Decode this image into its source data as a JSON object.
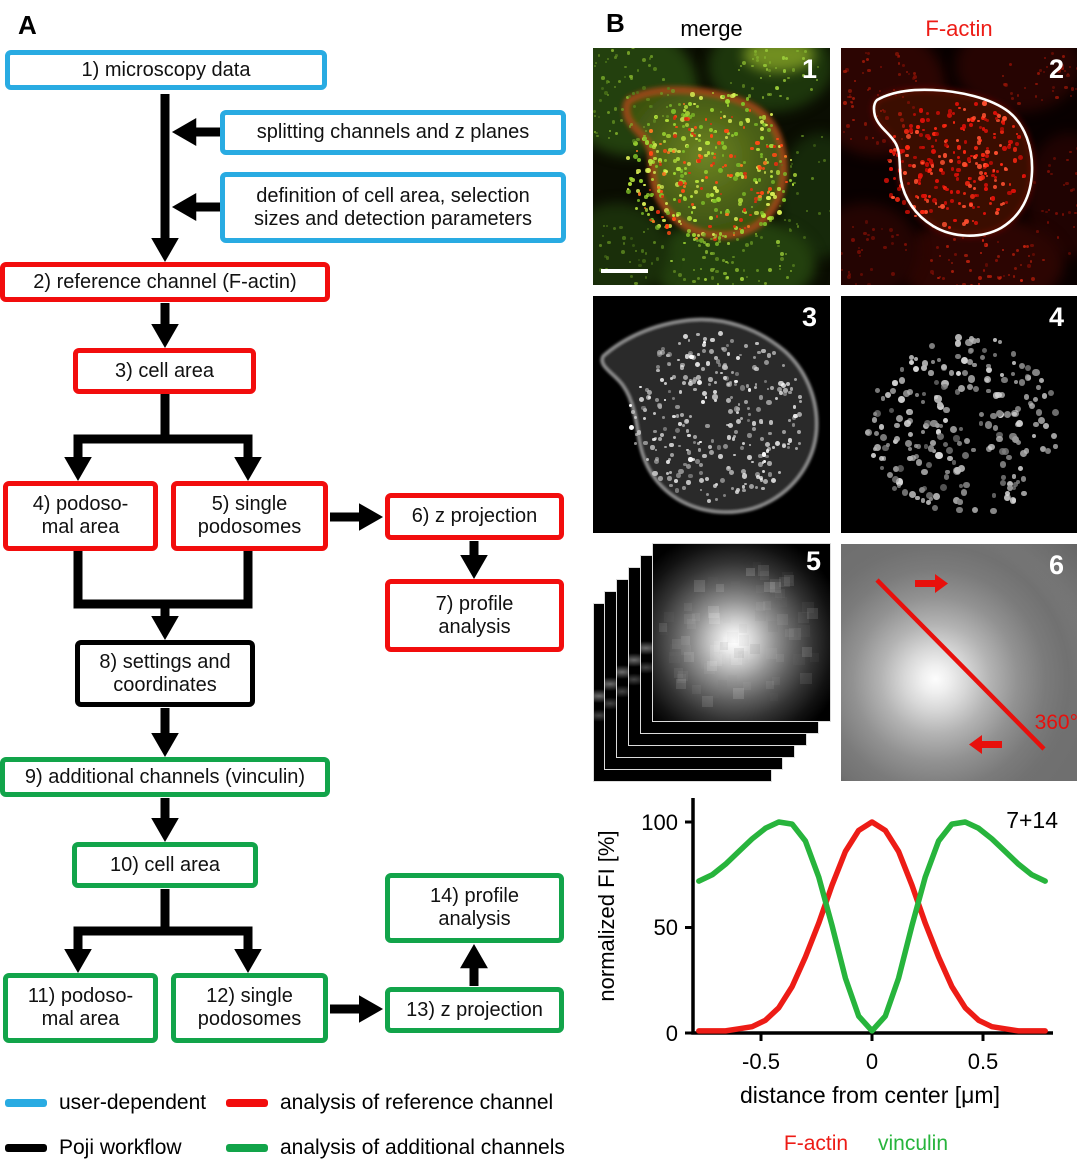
{
  "figure": {
    "panel_a_label": "A",
    "panel_b_label": "B"
  },
  "colors": {
    "user_dependent": "#29abe2",
    "workflow": "#000000",
    "reference": "#f20d0d",
    "additional": "#12a44a",
    "factin_label": "#ed1c16",
    "vinculin_label": "#27b43c",
    "annotation_red": "#e8100c"
  },
  "panel_a": {
    "boxes": [
      {
        "text": "1) microscopy data",
        "category": "user_dependent"
      },
      {
        "text": "splitting channels and z planes",
        "category": "user_dependent"
      },
      {
        "text": "definition of cell area, selection sizes and detection parameters",
        "category": "user_dependent"
      },
      {
        "text": "2) reference channel (F-actin)",
        "category": "reference"
      },
      {
        "text": "3) cell area",
        "category": "reference"
      },
      {
        "text": "4) podoso-mal area",
        "category": "reference"
      },
      {
        "text": "5) single podosomes",
        "category": "reference"
      },
      {
        "text": "6) z projection",
        "category": "reference"
      },
      {
        "text": "7) profile analysis",
        "category": "reference"
      },
      {
        "text": "8) settings and coordinates",
        "category": "workflow"
      },
      {
        "text": "9) additional channels (vinculin)",
        "category": "additional"
      },
      {
        "text": "10) cell area",
        "category": "additional"
      },
      {
        "text": "11) podoso-mal area",
        "category": "additional"
      },
      {
        "text": "12) single podosomes",
        "category": "additional"
      },
      {
        "text": "13) z projection",
        "category": "additional"
      },
      {
        "text": "14) profile analysis",
        "category": "additional"
      }
    ],
    "legend": [
      {
        "label": "user-dependent",
        "category": "user_dependent"
      },
      {
        "label": "Poji workflow",
        "category": "workflow"
      },
      {
        "label": "analysis of reference channel",
        "category": "reference"
      },
      {
        "label": "analysis of additional channels",
        "category": "additional"
      }
    ]
  },
  "panel_b": {
    "column_titles": [
      {
        "text": "merge"
      },
      {
        "text": "F-actin"
      }
    ],
    "image_numbers": [
      "1",
      "2",
      "3",
      "4",
      "5",
      "6"
    ],
    "rotation_label": "360°"
  },
  "chart_data": {
    "type": "line",
    "panel_tag": "7+14",
    "title": "",
    "xlabel": "distance from center [μm]",
    "ylabel": "normalized FI [%]",
    "xlim": [
      -0.78,
      0.78
    ],
    "ylim": [
      0,
      100
    ],
    "grid": false,
    "legend_position": "bottom",
    "xticks": [
      "-0.5",
      "0",
      "0.5"
    ],
    "yticks": [
      "0",
      "50",
      "100"
    ],
    "xtick_values": [
      -0.5,
      0,
      0.5
    ],
    "ytick_values": [
      0,
      50,
      100
    ],
    "x": [
      -0.78,
      -0.72,
      -0.66,
      -0.6,
      -0.54,
      -0.48,
      -0.42,
      -0.36,
      -0.3,
      -0.24,
      -0.18,
      -0.12,
      -0.06,
      0.0,
      0.06,
      0.12,
      0.18,
      0.24,
      0.3,
      0.36,
      0.42,
      0.48,
      0.54,
      0.6,
      0.66,
      0.72,
      0.78
    ],
    "series": [
      {
        "name": "F-actin",
        "color": "#ed1c16",
        "values": [
          1,
          1,
          1,
          2,
          3,
          6,
          12,
          22,
          36,
          52,
          70,
          86,
          96,
          100,
          96,
          86,
          70,
          52,
          36,
          22,
          12,
          6,
          3,
          2,
          1,
          1,
          1
        ]
      },
      {
        "name": "vinculin",
        "color": "#27b43c",
        "values": [
          72,
          75,
          80,
          86,
          92,
          97,
          100,
          99,
          91,
          74,
          51,
          26,
          8,
          1,
          8,
          26,
          51,
          74,
          91,
          99,
          100,
          97,
          92,
          86,
          80,
          75,
          72
        ]
      }
    ]
  }
}
